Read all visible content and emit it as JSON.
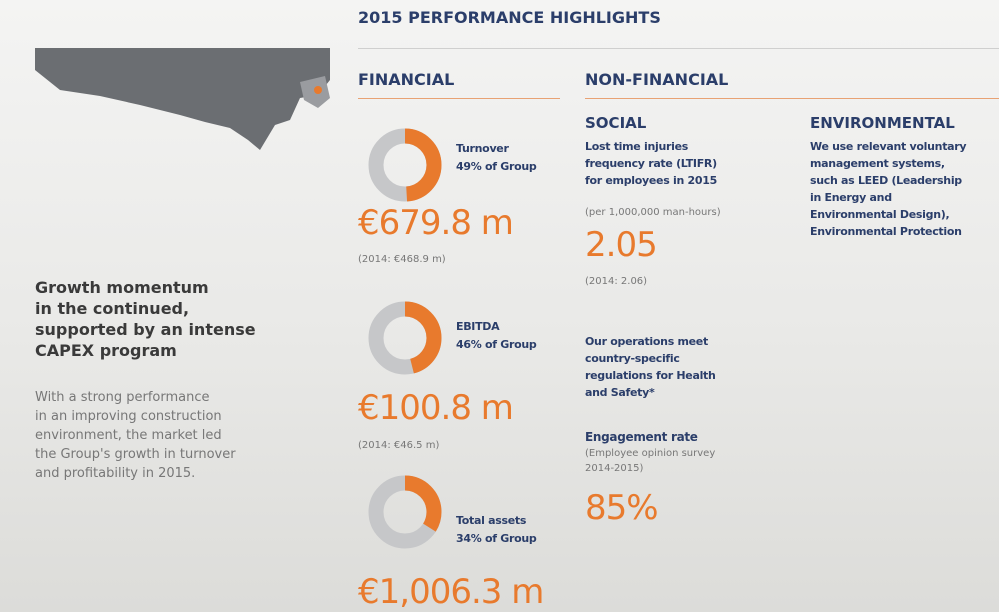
{
  "title": "2015 PERFORMANCE HIGHLIGHTS",
  "sidebar": {
    "heading_lines": [
      "Growth momentum",
      "in the continued,",
      "supported by an intense",
      "CAPEX program"
    ],
    "body_lines": [
      "With a strong performance",
      "in an improving construction",
      "environment, the market led",
      "the Group's growth in turnover",
      "and profitability in 2015."
    ]
  },
  "financial": {
    "heading": "FINANCIAL",
    "items": [
      {
        "label": "Turnover",
        "share": 49,
        "share_label": "49% of Group",
        "value": "€679.8 m",
        "prior": "(2014: €468.9 m)"
      },
      {
        "label": "EBITDA",
        "share": 46,
        "share_label": "46% of Group",
        "value": "€100.8 m",
        "prior": "(2014: €46.5 m)"
      },
      {
        "label": "Total assets",
        "share": 34,
        "share_label": "34% of Group",
        "value": "€1,006.3 m"
      }
    ]
  },
  "non_financial": {
    "heading": "NON-FINANCIAL",
    "social": {
      "heading": "SOCIAL",
      "ltifr_lines": [
        "Lost time injuries",
        "frequency rate (LTIFR)",
        "for employees in 2015"
      ],
      "ltifr_unit": "(per 1,000,000 man-hours)",
      "ltifr_value": "2.05",
      "ltifr_prior": "(2014: 2.06)",
      "regulation_lines": [
        "Our operations meet",
        "country-specific",
        "regulations for Health",
        "and Safety*"
      ],
      "engagement_heading": "Engagement rate",
      "engagement_lines": [
        "(Employee opinion survey",
        "2014-2015)"
      ],
      "engagement_value": "85%"
    },
    "environmental": {
      "heading": "ENVIRONMENTAL",
      "lines": [
        "We use relevant voluntary",
        "management systems,",
        "such as LEED (Leadership",
        "in Energy and",
        "Environmental Design),",
        "Environmental Protection"
      ]
    }
  }
}
